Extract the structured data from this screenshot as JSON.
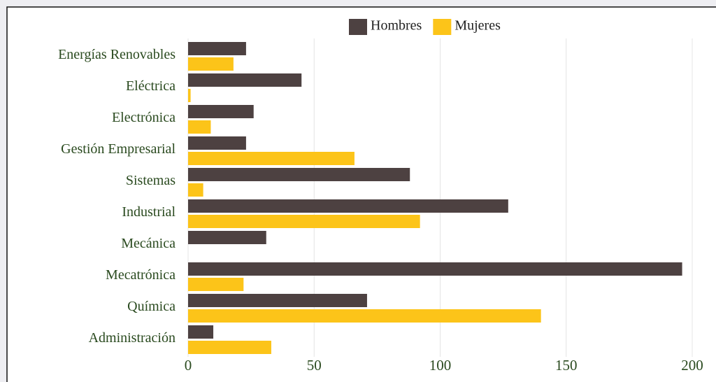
{
  "chart_data": {
    "type": "barh",
    "categories": [
      "Energías Renovables",
      "Eléctrica",
      "Electrónica",
      "Gestión Empresarial",
      "Sistemas",
      "Industrial",
      "Mecánica",
      "Mecatrónica",
      "Química",
      "Administración"
    ],
    "series": [
      {
        "name": "Hombres",
        "color": "#4d4141",
        "values": [
          23,
          45,
          26,
          23,
          88,
          127,
          31,
          196,
          71,
          10
        ]
      },
      {
        "name": "Mujeres",
        "color": "#fcc419",
        "values": [
          18,
          1,
          9,
          66,
          6,
          92,
          0,
          22,
          140,
          33
        ]
      }
    ],
    "xlim": [
      0,
      200
    ],
    "xticks": [
      0,
      50,
      100,
      150,
      200
    ],
    "grid": true,
    "legend": "top"
  }
}
